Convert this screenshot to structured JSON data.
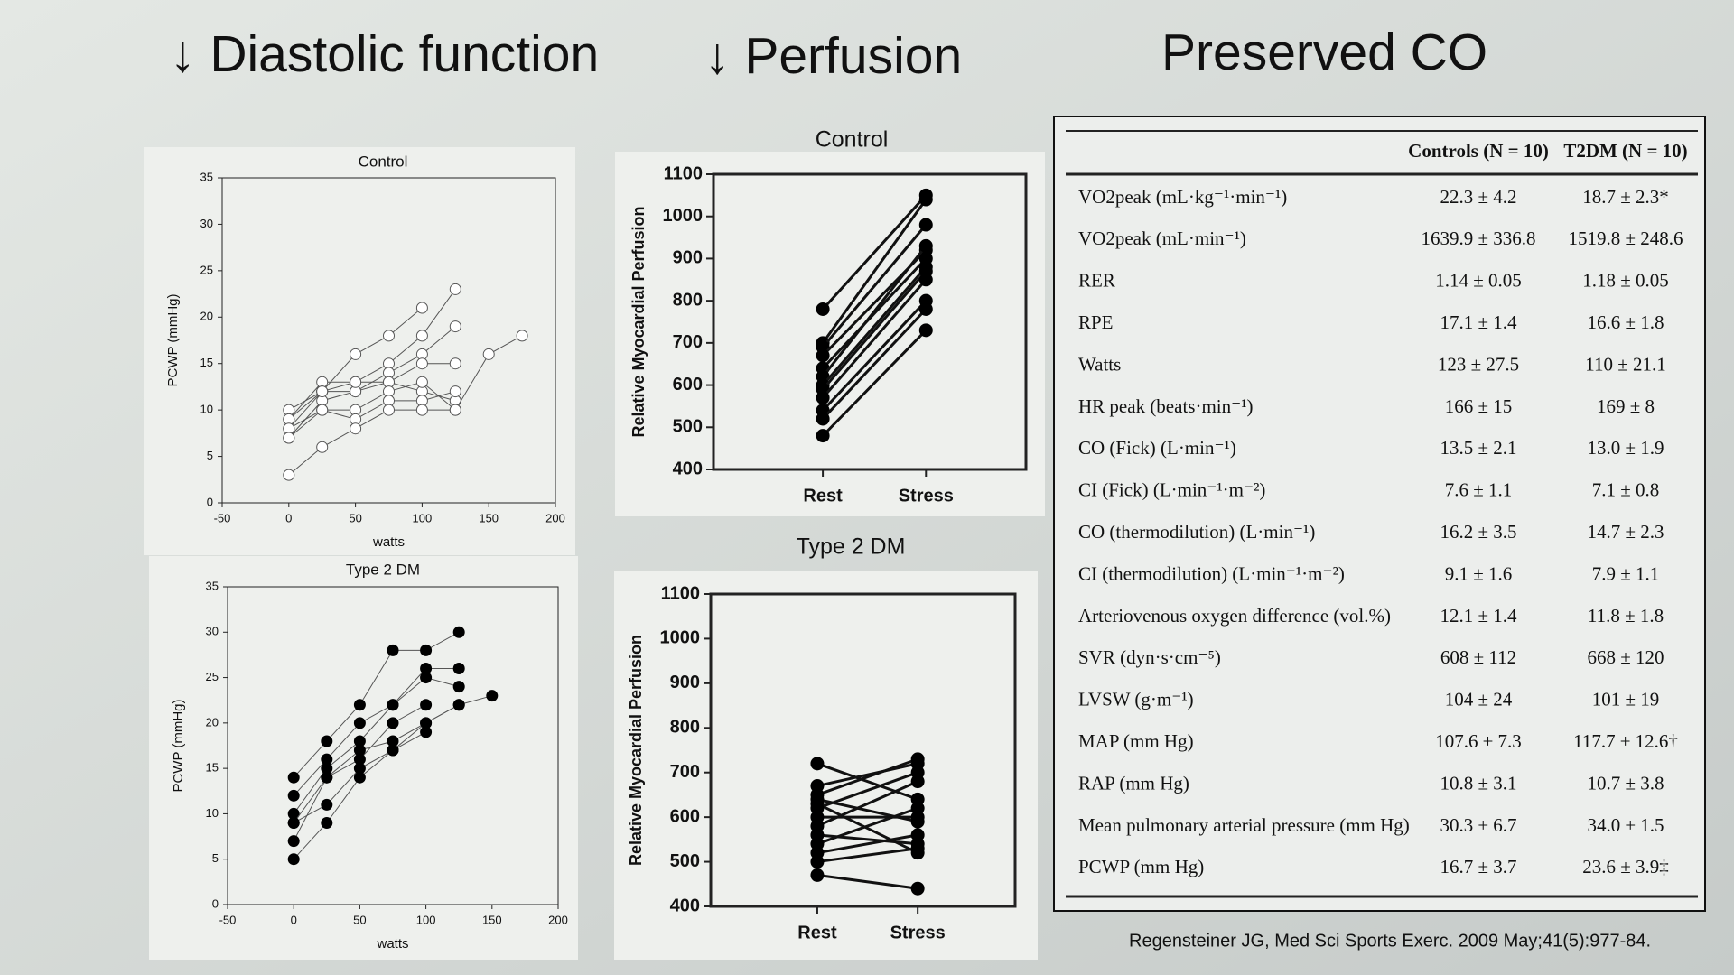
{
  "headings": [
    "↓ Diastolic function",
    "↓ Perfusion",
    "Preserved CO"
  ],
  "chart_data": [
    {
      "type": "line",
      "title": "Control",
      "xlabel": "watts",
      "ylabel": "PCWP (mmHg)",
      "marker": "open",
      "color": "#555555",
      "xlim": [
        -50,
        200
      ],
      "xticks": [
        -50,
        0,
        50,
        100,
        150,
        200
      ],
      "ylim": [
        0,
        35
      ],
      "yticks": [
        0,
        5,
        10,
        15,
        20,
        25,
        30,
        35
      ],
      "series": [
        {
          "x": [
            0,
            25,
            50,
            75,
            100
          ],
          "values": [
            10,
            12,
            16,
            18,
            21
          ]
        },
        {
          "x": [
            0,
            25,
            50,
            75,
            100,
            125
          ],
          "values": [
            9,
            13,
            13,
            15,
            18,
            23
          ]
        },
        {
          "x": [
            0,
            25,
            50,
            75,
            100,
            125
          ],
          "values": [
            8,
            12,
            12,
            14,
            16,
            19
          ]
        },
        {
          "x": [
            0,
            25,
            50,
            75,
            100,
            125
          ],
          "values": [
            7,
            11,
            12,
            13,
            15,
            15
          ]
        },
        {
          "x": [
            0,
            25,
            50,
            75,
            100,
            125
          ],
          "values": [
            9,
            12,
            13,
            13,
            12,
            11
          ]
        },
        {
          "x": [
            0,
            25,
            50,
            75,
            100,
            125,
            150,
            175
          ],
          "values": [
            8,
            10,
            10,
            12,
            13,
            10,
            16,
            18
          ]
        },
        {
          "x": [
            0,
            25,
            50,
            75,
            100,
            125
          ],
          "values": [
            7,
            10,
            9,
            11,
            11,
            12
          ]
        },
        {
          "x": [
            0,
            25,
            50,
            75,
            100,
            125
          ],
          "values": [
            3,
            6,
            8,
            10,
            10,
            10
          ]
        }
      ]
    },
    {
      "type": "line",
      "title": "Type 2 DM",
      "xlabel": "watts",
      "ylabel": "PCWP (mmHg)",
      "marker": "filled",
      "color": "#555555",
      "xlim": [
        -50,
        200
      ],
      "xticks": [
        -50,
        0,
        50,
        100,
        150,
        200
      ],
      "ylim": [
        0,
        35
      ],
      "yticks": [
        0,
        5,
        10,
        15,
        20,
        25,
        30,
        35
      ],
      "series": [
        {
          "x": [
            0,
            25,
            50,
            75,
            100,
            125
          ],
          "values": [
            14,
            18,
            22,
            28,
            28,
            30
          ]
        },
        {
          "x": [
            0,
            25,
            50,
            75,
            100,
            125
          ],
          "values": [
            12,
            16,
            20,
            22,
            26,
            26
          ]
        },
        {
          "x": [
            0,
            25,
            50,
            75,
            100,
            125
          ],
          "values": [
            10,
            15,
            18,
            22,
            25,
            24
          ]
        },
        {
          "x": [
            0,
            25,
            50,
            75,
            100
          ],
          "values": [
            9,
            14,
            16,
            20,
            22
          ]
        },
        {
          "x": [
            0,
            25,
            50,
            75,
            100,
            125,
            150
          ],
          "values": [
            7,
            14,
            17,
            18,
            20,
            22,
            23
          ]
        },
        {
          "x": [
            0,
            25,
            50,
            75,
            100
          ],
          "values": [
            5,
            9,
            14,
            17,
            19
          ]
        },
        {
          "x": [
            0,
            25,
            50,
            75,
            100,
            125
          ],
          "values": [
            9,
            11,
            15,
            17,
            20,
            22
          ]
        }
      ]
    },
    {
      "type": "line",
      "title": "Control",
      "ylabel": "Relative Myocardial Perfusion",
      "marker": "filled",
      "color": "#111111",
      "categories": [
        "Rest",
        "Stress"
      ],
      "ylim": [
        400,
        1100
      ],
      "yticks": [
        400,
        500,
        600,
        700,
        800,
        900,
        1000,
        1100
      ],
      "series": [
        {
          "values": [
            780,
            1050
          ]
        },
        {
          "values": [
            700,
            1040
          ]
        },
        {
          "values": [
            690,
            980
          ]
        },
        {
          "values": [
            670,
            920
          ]
        },
        {
          "values": [
            640,
            900
          ]
        },
        {
          "values": [
            620,
            930
          ]
        },
        {
          "values": [
            600,
            880
          ]
        },
        {
          "values": [
            590,
            870
          ]
        },
        {
          "values": [
            570,
            850
          ]
        },
        {
          "values": [
            540,
            800
          ]
        },
        {
          "values": [
            520,
            780
          ]
        },
        {
          "values": [
            480,
            730
          ]
        }
      ]
    },
    {
      "type": "line",
      "title": "Type 2 DM",
      "ylabel": "Relative Myocardial Perfusion",
      "marker": "filled",
      "color": "#111111",
      "categories": [
        "Rest",
        "Stress"
      ],
      "ylim": [
        400,
        1100
      ],
      "yticks": [
        400,
        500,
        600,
        700,
        800,
        900,
        1000,
        1100
      ],
      "series": [
        {
          "values": [
            720,
            640
          ]
        },
        {
          "values": [
            670,
            720
          ]
        },
        {
          "values": [
            650,
            730
          ]
        },
        {
          "values": [
            640,
            590
          ]
        },
        {
          "values": [
            630,
            520
          ]
        },
        {
          "values": [
            620,
            700
          ]
        },
        {
          "values": [
            600,
            600
          ]
        },
        {
          "values": [
            580,
            680
          ]
        },
        {
          "values": [
            560,
            540
          ]
        },
        {
          "values": [
            540,
            620
          ]
        },
        {
          "values": [
            520,
            560
          ]
        },
        {
          "values": [
            500,
            530
          ]
        },
        {
          "values": [
            470,
            440
          ]
        }
      ]
    }
  ],
  "table": {
    "headers": [
      "Controls (N = 10)",
      "T2DM (N = 10)"
    ],
    "rows": [
      [
        "VO2peak (mL·kg⁻¹·min⁻¹)",
        "22.3 ± 4.2",
        "18.7 ± 2.3*"
      ],
      [
        "VO2peak (mL·min⁻¹)",
        "1639.9 ± 336.8",
        "1519.8 ± 248.6"
      ],
      [
        "RER",
        "1.14 ± 0.05",
        "1.18 ± 0.05"
      ],
      [
        "RPE",
        "17.1 ± 1.4",
        "16.6 ± 1.8"
      ],
      [
        "Watts",
        "123 ± 27.5",
        "110 ± 21.1"
      ],
      [
        "HR peak (beats·min⁻¹)",
        "166 ± 15",
        "169 ± 8"
      ],
      [
        "CO (Fick) (L·min⁻¹)",
        "13.5 ± 2.1",
        "13.0 ± 1.9"
      ],
      [
        "CI (Fick) (L·min⁻¹·m⁻²)",
        "7.6 ± 1.1",
        "7.1 ± 0.8"
      ],
      [
        "CO (thermodilution) (L·min⁻¹)",
        "16.2 ± 3.5",
        "14.7 ± 2.3"
      ],
      [
        "CI (thermodilution) (L·min⁻¹·m⁻²)",
        "9.1 ± 1.6",
        "7.9 ± 1.1"
      ],
      [
        "Arteriovenous oxygen difference (vol.%)",
        "12.1 ± 1.4",
        "11.8 ± 1.8"
      ],
      [
        "SVR (dyn·s·cm⁻⁵)",
        "608 ± 112",
        "668 ± 120"
      ],
      [
        "LVSW (g·m⁻¹)",
        "104 ± 24",
        "101 ± 19"
      ],
      [
        "MAP (mm Hg)",
        "107.6 ± 7.3",
        "117.7 ± 12.6†"
      ],
      [
        "RAP (mm Hg)",
        "10.8 ± 3.1",
        "10.7 ± 3.8"
      ],
      [
        "Mean pulmonary arterial pressure (mm Hg)",
        "30.3 ± 6.7",
        "34.0 ± 1.5"
      ],
      [
        "PCWP (mm Hg)",
        "16.7 ± 3.7",
        "23.6 ± 3.9‡"
      ]
    ]
  },
  "citation": "Regensteiner JG, Med Sci Sports Exerc. 2009 May;41(5):977-84."
}
